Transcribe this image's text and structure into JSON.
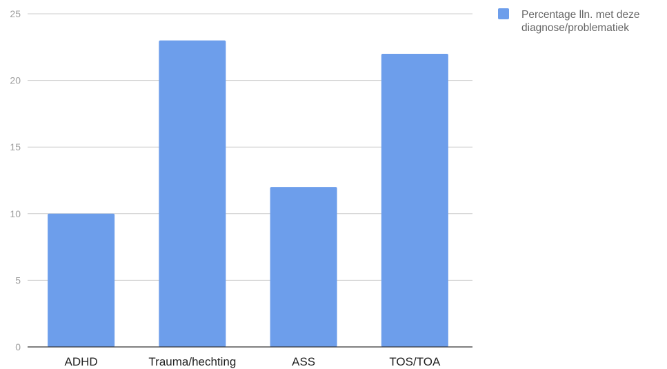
{
  "chart_data": {
    "type": "bar",
    "title": "",
    "xlabel": "",
    "ylabel": "",
    "categories": [
      "ADHD",
      "Trauma/hechting",
      "ASS",
      "TOS/TOA"
    ],
    "series": [
      {
        "name": "Percentage lln. met deze diagnose/problematiek",
        "legend_lines": [
          "Percentage lln. met deze",
          "diagnose/problematiek"
        ],
        "values": [
          10,
          23,
          12,
          22
        ],
        "color": "#6d9eeb"
      }
    ],
    "ylim": [
      0,
      25
    ],
    "yticks": [
      "0",
      "5",
      "10",
      "15",
      "20",
      "25"
    ],
    "grid": true,
    "legend_position": "right",
    "colors": {
      "grid": "#cccccc",
      "baseline": "#333333",
      "tick_text": "#9e9e9e",
      "category_text": "#222222",
      "legend_text": "#666666"
    }
  }
}
